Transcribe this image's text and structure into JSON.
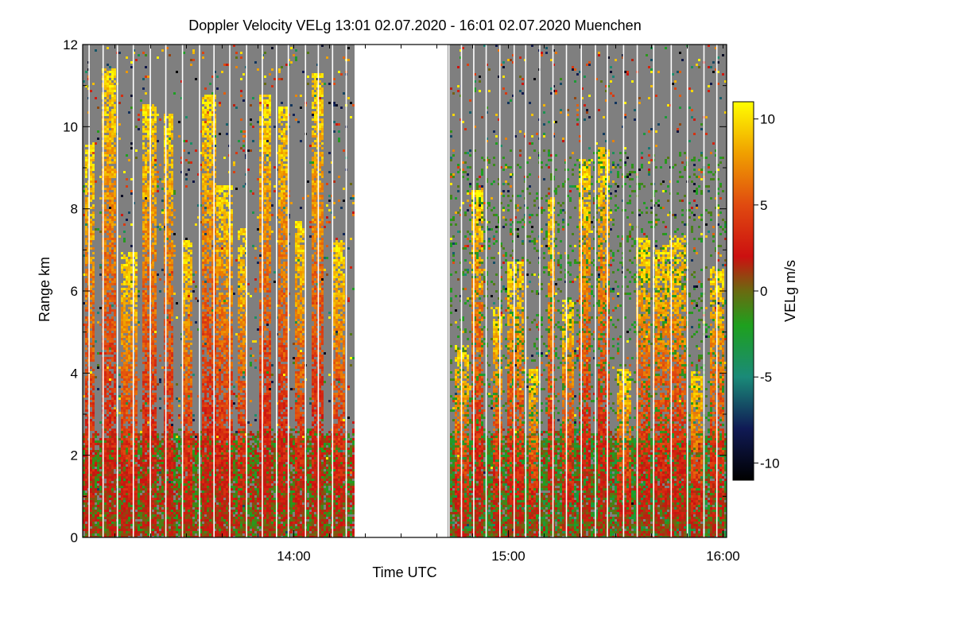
{
  "chart_data": {
    "type": "heatmap",
    "title": "Doppler Velocity VELg   13:01 02.07.2020 - 16:01 02.07.2020 Muenchen",
    "xlabel": "Time UTC",
    "ylabel": "Range km",
    "x_range_minutes": [
      781,
      961
    ],
    "y_range_km": [
      0,
      12
    ],
    "x_ticks": [
      {
        "label": "14:00",
        "minute": 840
      },
      {
        "label": "15:00",
        "minute": 900
      },
      {
        "label": "16:00",
        "minute": 960
      }
    ],
    "y_ticks": [
      {
        "label": "0",
        "value": 0
      },
      {
        "label": "2",
        "value": 2
      },
      {
        "label": "4",
        "value": 4
      },
      {
        "label": "6",
        "value": 6
      },
      {
        "label": "8",
        "value": 8
      },
      {
        "label": "10",
        "value": 10
      },
      {
        "label": "12",
        "value": 12
      }
    ],
    "no_data_interval_minutes": [
      857,
      883
    ],
    "colorbar": {
      "label": "VELg m/s",
      "range": [
        -11,
        11
      ],
      "ticks": [
        {
          "label": "10",
          "value": 10
        },
        {
          "label": "5",
          "value": 5
        },
        {
          "label": "0",
          "value": 0
        },
        {
          "label": "-5",
          "value": -5
        },
        {
          "label": "-10",
          "value": -10
        }
      ],
      "stops": [
        {
          "value": -11,
          "color": "#000000"
        },
        {
          "value": -8,
          "color": "#101a55"
        },
        {
          "value": -5,
          "color": "#1a8a78"
        },
        {
          "value": -2,
          "color": "#1ea01e"
        },
        {
          "value": 0,
          "color": "#6a6a10"
        },
        {
          "value": 2,
          "color": "#cc1010"
        },
        {
          "value": 5,
          "color": "#e04a10"
        },
        {
          "value": 8,
          "color": "#f0a000"
        },
        {
          "value": 11,
          "color": "#ffff00"
        }
      ]
    },
    "background_color": "#7f7f7f"
  }
}
